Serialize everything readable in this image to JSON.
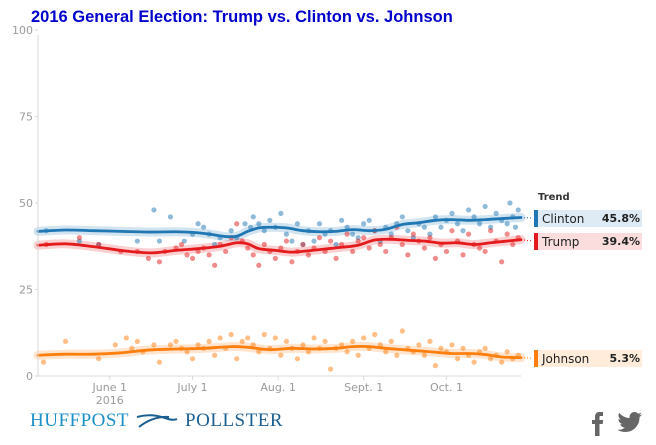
{
  "chart_data": {
    "type": "scatter",
    "title": "2016 General Election: Trump vs. Clinton vs. Johnson",
    "xlabel": "",
    "ylabel": "",
    "ylim": [
      0,
      100
    ],
    "yticks": [
      0,
      25,
      50,
      75,
      100
    ],
    "x_range": [
      "2016-05-06",
      "2016-10-28"
    ],
    "xticks": [
      {
        "date": "2016-06-01",
        "label": "June 1",
        "sublabel": "2016"
      },
      {
        "date": "2016-07-01",
        "label": "July 1",
        "sublabel": ""
      },
      {
        "date": "2016-08-01",
        "label": "Aug. 1",
        "sublabel": ""
      },
      {
        "date": "2016-09-01",
        "label": "Sept. 1",
        "sublabel": ""
      },
      {
        "date": "2016-10-01",
        "label": "Oct. 1",
        "sublabel": ""
      }
    ],
    "legend_title": "Trend",
    "legend_placement": "right",
    "series": [
      {
        "name": "Clinton",
        "color": "#1f77b4",
        "latest": "45.8%",
        "trend": [
          [
            0,
            41.8
          ],
          [
            10,
            42.2
          ],
          [
            20,
            42.0
          ],
          [
            30,
            41.8
          ],
          [
            40,
            41.6
          ],
          [
            50,
            41.7
          ],
          [
            56,
            41.5
          ],
          [
            62,
            41.0
          ],
          [
            68,
            40.3
          ],
          [
            72,
            40.4
          ],
          [
            76,
            41.8
          ],
          [
            80,
            42.8
          ],
          [
            84,
            43.0
          ],
          [
            90,
            42.8
          ],
          [
            96,
            42.0
          ],
          [
            102,
            41.7
          ],
          [
            108,
            41.8
          ],
          [
            114,
            42.3
          ],
          [
            120,
            42.0
          ],
          [
            126,
            42.4
          ],
          [
            132,
            43.8
          ],
          [
            138,
            44.3
          ],
          [
            144,
            45.0
          ],
          [
            150,
            45.2
          ],
          [
            156,
            45.0
          ],
          [
            162,
            45.2
          ],
          [
            168,
            45.5
          ],
          [
            175,
            45.8
          ]
        ],
        "points": [
          [
            3,
            42
          ],
          [
            15,
            39
          ],
          [
            22,
            38
          ],
          [
            36,
            39
          ],
          [
            42,
            48
          ],
          [
            44,
            39
          ],
          [
            48,
            46
          ],
          [
            53,
            39
          ],
          [
            56,
            41
          ],
          [
            58,
            44
          ],
          [
            60,
            43
          ],
          [
            62,
            41
          ],
          [
            64,
            38
          ],
          [
            66,
            40
          ],
          [
            70,
            42
          ],
          [
            72,
            40
          ],
          [
            75,
            44
          ],
          [
            77,
            43
          ],
          [
            78,
            46
          ],
          [
            80,
            44
          ],
          [
            82,
            42
          ],
          [
            84,
            45
          ],
          [
            86,
            43
          ],
          [
            88,
            47
          ],
          [
            90,
            41
          ],
          [
            92,
            39
          ],
          [
            94,
            44
          ],
          [
            96,
            38
          ],
          [
            98,
            42
          ],
          [
            100,
            39
          ],
          [
            102,
            44
          ],
          [
            104,
            41
          ],
          [
            106,
            42
          ],
          [
            108,
            38
          ],
          [
            110,
            45
          ],
          [
            112,
            43
          ],
          [
            114,
            41
          ],
          [
            116,
            40
          ],
          [
            118,
            44
          ],
          [
            120,
            45
          ],
          [
            122,
            42
          ],
          [
            124,
            39
          ],
          [
            126,
            43
          ],
          [
            128,
            41
          ],
          [
            130,
            44
          ],
          [
            132,
            46
          ],
          [
            134,
            42
          ],
          [
            136,
            40
          ],
          [
            138,
            44
          ],
          [
            140,
            43
          ],
          [
            142,
            41
          ],
          [
            144,
            46
          ],
          [
            146,
            43
          ],
          [
            148,
            45
          ],
          [
            150,
            47
          ],
          [
            152,
            44
          ],
          [
            154,
            42
          ],
          [
            156,
            48
          ],
          [
            158,
            46
          ],
          [
            160,
            44
          ],
          [
            162,
            49
          ],
          [
            164,
            43
          ],
          [
            166,
            47
          ],
          [
            168,
            45
          ],
          [
            170,
            44
          ],
          [
            171,
            50
          ],
          [
            172,
            46
          ],
          [
            173,
            43
          ],
          [
            174,
            48
          ]
        ]
      },
      {
        "name": "Trump",
        "color": "#e41a1c",
        "latest": "39.4%",
        "trend": [
          [
            0,
            37.8
          ],
          [
            10,
            38.2
          ],
          [
            20,
            37.4
          ],
          [
            30,
            36.3
          ],
          [
            36,
            35.8
          ],
          [
            42,
            35.6
          ],
          [
            50,
            36.3
          ],
          [
            58,
            36.8
          ],
          [
            66,
            37.5
          ],
          [
            72,
            38.5
          ],
          [
            76,
            38.2
          ],
          [
            80,
            36.8
          ],
          [
            86,
            36.3
          ],
          [
            92,
            35.8
          ],
          [
            98,
            36.2
          ],
          [
            104,
            36.7
          ],
          [
            110,
            37.2
          ],
          [
            116,
            37.8
          ],
          [
            122,
            39.3
          ],
          [
            128,
            39.5
          ],
          [
            134,
            39.2
          ],
          [
            140,
            39.0
          ],
          [
            146,
            38.4
          ],
          [
            152,
            38.5
          ],
          [
            158,
            38.0
          ],
          [
            164,
            38.5
          ],
          [
            170,
            39.0
          ],
          [
            175,
            39.4
          ]
        ],
        "points": [
          [
            3,
            38
          ],
          [
            15,
            40
          ],
          [
            22,
            38
          ],
          [
            30,
            36
          ],
          [
            36,
            36
          ],
          [
            40,
            34
          ],
          [
            44,
            33
          ],
          [
            46,
            36
          ],
          [
            50,
            37
          ],
          [
            52,
            38
          ],
          [
            54,
            35
          ],
          [
            56,
            34
          ],
          [
            58,
            36
          ],
          [
            60,
            37
          ],
          [
            62,
            35
          ],
          [
            64,
            32
          ],
          [
            66,
            38
          ],
          [
            68,
            36
          ],
          [
            70,
            40
          ],
          [
            72,
            44
          ],
          [
            74,
            39
          ],
          [
            76,
            37
          ],
          [
            78,
            35
          ],
          [
            80,
            32
          ],
          [
            82,
            38
          ],
          [
            84,
            36
          ],
          [
            86,
            34
          ],
          [
            88,
            37
          ],
          [
            90,
            39
          ],
          [
            92,
            33
          ],
          [
            94,
            36
          ],
          [
            96,
            38
          ],
          [
            98,
            35
          ],
          [
            100,
            37
          ],
          [
            102,
            40
          ],
          [
            104,
            36
          ],
          [
            106,
            39
          ],
          [
            108,
            34
          ],
          [
            110,
            38
          ],
          [
            112,
            41
          ],
          [
            114,
            36
          ],
          [
            116,
            39
          ],
          [
            118,
            40
          ],
          [
            120,
            37
          ],
          [
            122,
            42
          ],
          [
            124,
            38
          ],
          [
            126,
            36
          ],
          [
            128,
            40
          ],
          [
            130,
            43
          ],
          [
            132,
            38
          ],
          [
            134,
            35
          ],
          [
            136,
            41
          ],
          [
            138,
            39
          ],
          [
            140,
            37
          ],
          [
            142,
            40
          ],
          [
            144,
            34
          ],
          [
            146,
            38
          ],
          [
            148,
            36
          ],
          [
            150,
            42
          ],
          [
            152,
            39
          ],
          [
            154,
            35
          ],
          [
            156,
            41
          ],
          [
            158,
            38
          ],
          [
            160,
            37
          ],
          [
            162,
            36
          ],
          [
            164,
            42
          ],
          [
            166,
            39
          ],
          [
            168,
            33
          ],
          [
            170,
            41
          ],
          [
            172,
            38
          ],
          [
            174,
            40
          ]
        ]
      },
      {
        "name": "Johnson",
        "color": "#ff7f0e",
        "latest": "5.3%",
        "trend": [
          [
            0,
            6.0
          ],
          [
            10,
            6.3
          ],
          [
            20,
            6.3
          ],
          [
            30,
            6.7
          ],
          [
            40,
            7.5
          ],
          [
            50,
            7.8
          ],
          [
            60,
            8.0
          ],
          [
            70,
            8.5
          ],
          [
            76,
            8.3
          ],
          [
            84,
            7.6
          ],
          [
            92,
            8.0
          ],
          [
            100,
            7.8
          ],
          [
            108,
            8.0
          ],
          [
            114,
            8.5
          ],
          [
            120,
            8.5
          ],
          [
            126,
            8.0
          ],
          [
            134,
            7.5
          ],
          [
            142,
            7.0
          ],
          [
            150,
            6.5
          ],
          [
            156,
            6.5
          ],
          [
            162,
            6.2
          ],
          [
            168,
            5.5
          ],
          [
            175,
            5.3
          ]
        ],
        "points": [
          [
            2,
            4
          ],
          [
            10,
            10
          ],
          [
            22,
            5
          ],
          [
            28,
            9
          ],
          [
            32,
            11
          ],
          [
            34,
            8
          ],
          [
            36,
            10
          ],
          [
            38,
            7
          ],
          [
            42,
            9
          ],
          [
            44,
            4
          ],
          [
            48,
            9
          ],
          [
            50,
            10
          ],
          [
            52,
            8
          ],
          [
            54,
            7
          ],
          [
            56,
            5
          ],
          [
            58,
            9
          ],
          [
            60,
            8
          ],
          [
            62,
            10
          ],
          [
            64,
            6
          ],
          [
            66,
            11
          ],
          [
            68,
            8
          ],
          [
            70,
            12
          ],
          [
            72,
            5
          ],
          [
            74,
            10
          ],
          [
            76,
            11
          ],
          [
            78,
            9
          ],
          [
            80,
            7
          ],
          [
            82,
            12
          ],
          [
            84,
            8
          ],
          [
            86,
            11
          ],
          [
            88,
            6
          ],
          [
            90,
            10
          ],
          [
            92,
            8
          ],
          [
            94,
            5
          ],
          [
            96,
            9
          ],
          [
            98,
            7
          ],
          [
            100,
            11
          ],
          [
            102,
            8
          ],
          [
            104,
            10
          ],
          [
            106,
            2
          ],
          [
            108,
            8
          ],
          [
            110,
            9
          ],
          [
            112,
            7
          ],
          [
            114,
            10
          ],
          [
            116,
            6
          ],
          [
            118,
            11
          ],
          [
            120,
            8
          ],
          [
            122,
            12
          ],
          [
            124,
            9
          ],
          [
            126,
            7
          ],
          [
            128,
            10
          ],
          [
            130,
            6
          ],
          [
            132,
            13
          ],
          [
            134,
            8
          ],
          [
            136,
            7
          ],
          [
            138,
            9
          ],
          [
            140,
            6
          ],
          [
            142,
            10
          ],
          [
            144,
            3
          ],
          [
            146,
            8
          ],
          [
            148,
            7
          ],
          [
            150,
            9
          ],
          [
            152,
            5
          ],
          [
            154,
            8
          ],
          [
            156,
            6
          ],
          [
            158,
            4
          ],
          [
            160,
            7
          ],
          [
            162,
            8
          ],
          [
            164,
            5
          ],
          [
            166,
            6
          ],
          [
            168,
            4
          ],
          [
            170,
            7
          ],
          [
            172,
            5
          ],
          [
            174,
            6
          ]
        ]
      }
    ]
  },
  "branding": {
    "huffpost": "HUFFPOST",
    "pollster": "POLLSTER"
  },
  "social": {
    "facebook_icon": "facebook-icon",
    "twitter_icon": "twitter-icon"
  }
}
